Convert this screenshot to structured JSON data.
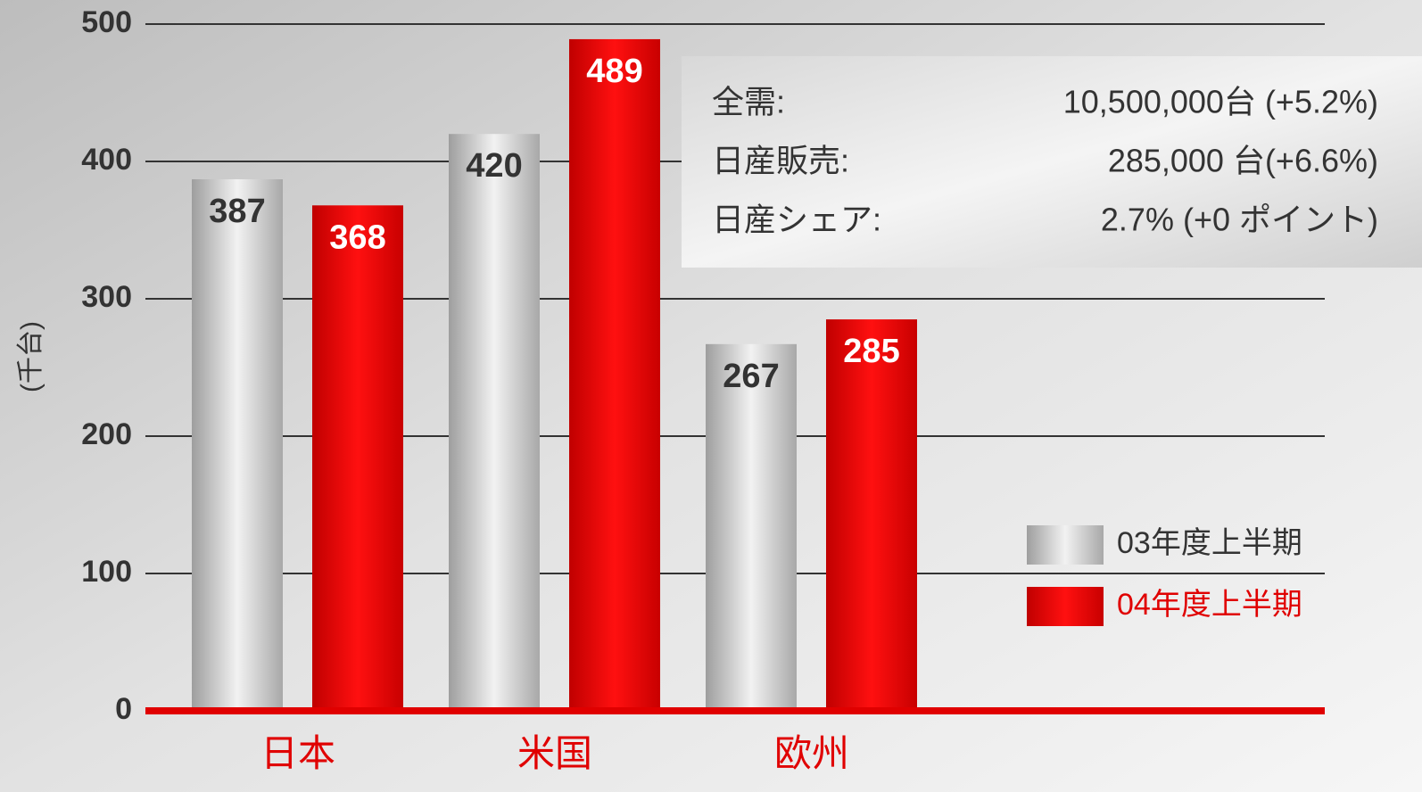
{
  "chart_data": {
    "type": "bar",
    "y_label": "(千台)",
    "categories": [
      "日本",
      "米国",
      "欧州"
    ],
    "series": [
      {
        "name": "03年度上半期",
        "color": "#c8c8c8",
        "values": [
          387,
          420,
          267
        ]
      },
      {
        "name": "04年度上半期",
        "color": "#e60000",
        "values": [
          368,
          489,
          285
        ]
      }
    ],
    "ylim": [
      0,
      500
    ],
    "yticks": [
      0,
      100,
      200,
      300,
      400,
      500
    ],
    "grid": true,
    "info_box": {
      "rows": [
        [
          "全需:",
          "10,500,000台 (+5.2%)"
        ],
        [
          "日産販売:",
          "285,000 台(+6.6%)"
        ],
        [
          "日産シェア:",
          "2.7% (+0 ポイント)"
        ]
      ]
    }
  }
}
